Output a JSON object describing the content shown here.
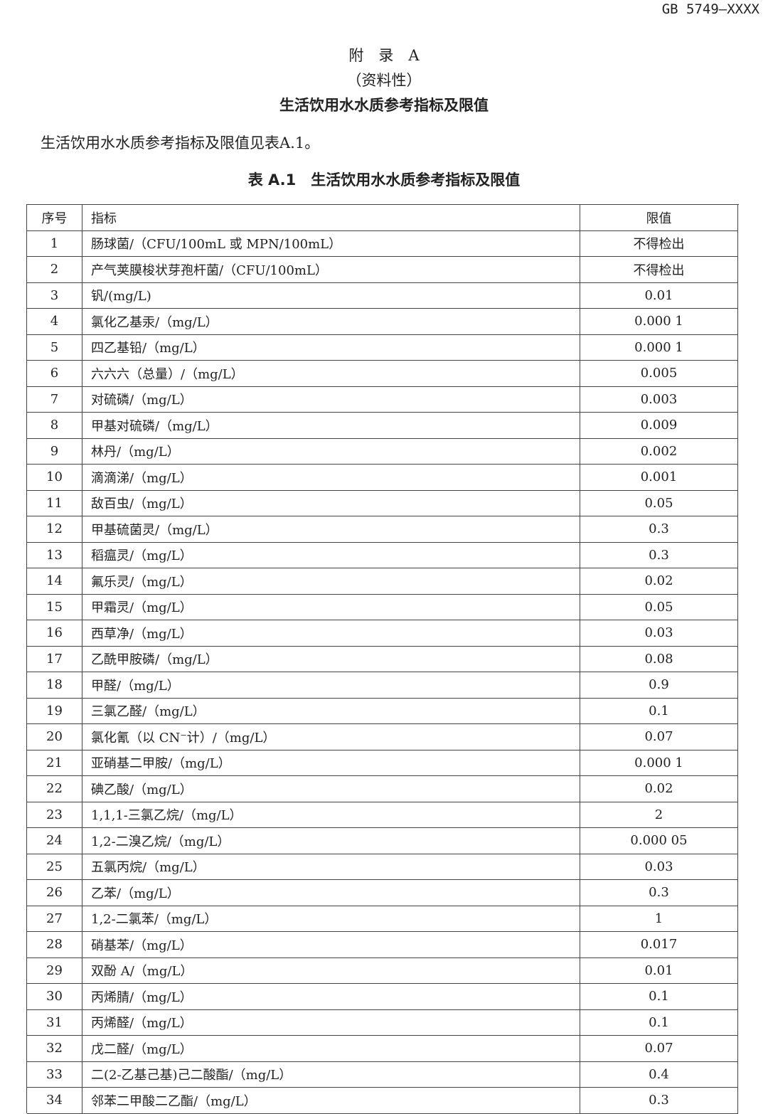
{
  "header": {
    "code": "GB 5749—XXXX"
  },
  "title": {
    "lines": [
      "附　录　A",
      "（资料性）",
      "生活饮用水水质参考指标及限值"
    ]
  },
  "intro": "生活饮用水水质参考指标及限值见表A.1。",
  "table": {
    "caption": "表 A.1　生活饮用水水质参考指标及限值",
    "columns": [
      "序号",
      "指标",
      "限值"
    ],
    "rows": [
      [
        "1",
        "肠球菌/（CFU/100mL 或 MPN/100mL）",
        "不得检出"
      ],
      [
        "2",
        "产气荚膜梭状芽孢杆菌/（CFU/100mL）",
        "不得检出"
      ],
      [
        "3",
        "钒/(mg/L)",
        "0.01"
      ],
      [
        "4",
        "氯化乙基汞/（mg/L）",
        "0.000 1"
      ],
      [
        "5",
        "四乙基铅/（mg/L）",
        "0.000 1"
      ],
      [
        "6",
        "六六六（总量）/（mg/L）",
        "0.005"
      ],
      [
        "7",
        "对硫磷/（mg/L）",
        "0.003"
      ],
      [
        "8",
        "甲基对硫磷/（mg/L）",
        "0.009"
      ],
      [
        "9",
        "林丹/（mg/L）",
        "0.002"
      ],
      [
        "10",
        "滴滴涕/（mg/L）",
        "0.001"
      ],
      [
        "11",
        "敌百虫/（mg/L）",
        "0.05"
      ],
      [
        "12",
        "甲基硫菌灵/（mg/L）",
        "0.3"
      ],
      [
        "13",
        "稻瘟灵/（mg/L）",
        "0.3"
      ],
      [
        "14",
        "氟乐灵/（mg/L）",
        "0.02"
      ],
      [
        "15",
        "甲霜灵/（mg/L）",
        "0.05"
      ],
      [
        "16",
        "西草净/（mg/L）",
        "0.03"
      ],
      [
        "17",
        "乙酰甲胺磷/（mg/L）",
        "0.08"
      ],
      [
        "18",
        "甲醛/（mg/L）",
        "0.9"
      ],
      [
        "19",
        "三氯乙醛/（mg/L）",
        "0.1"
      ],
      [
        "20",
        "氯化氰（以 CN⁻计）/（mg/L）",
        "0.07"
      ],
      [
        "21",
        "亚硝基二甲胺/（mg/L）",
        "0.000 1"
      ],
      [
        "22",
        "碘乙酸/（mg/L）",
        "0.02"
      ],
      [
        "23",
        "1,1,1-三氯乙烷/（mg/L）",
        "2"
      ],
      [
        "24",
        "1,2-二溴乙烷/（mg/L）",
        "0.000 05"
      ],
      [
        "25",
        "五氯丙烷/（mg/L）",
        "0.03"
      ],
      [
        "26",
        "乙苯/（mg/L）",
        "0.3"
      ],
      [
        "27",
        "1,2-二氯苯/（mg/L）",
        "1"
      ],
      [
        "28",
        "硝基苯/（mg/L）",
        "0.017"
      ],
      [
        "29",
        "双酚 A/（mg/L）",
        "0.01"
      ],
      [
        "30",
        "丙烯腈/（mg/L）",
        "0.1"
      ],
      [
        "31",
        "丙烯醛/（mg/L）",
        "0.1"
      ],
      [
        "32",
        "戊二醛/（mg/L）",
        "0.07"
      ],
      [
        "33",
        "二(2-乙基己基)己二酸酯/（mg/L）",
        "0.4"
      ],
      [
        "34",
        "邻苯二甲酸二乙酯/（mg/L）",
        "0.3"
      ]
    ]
  }
}
